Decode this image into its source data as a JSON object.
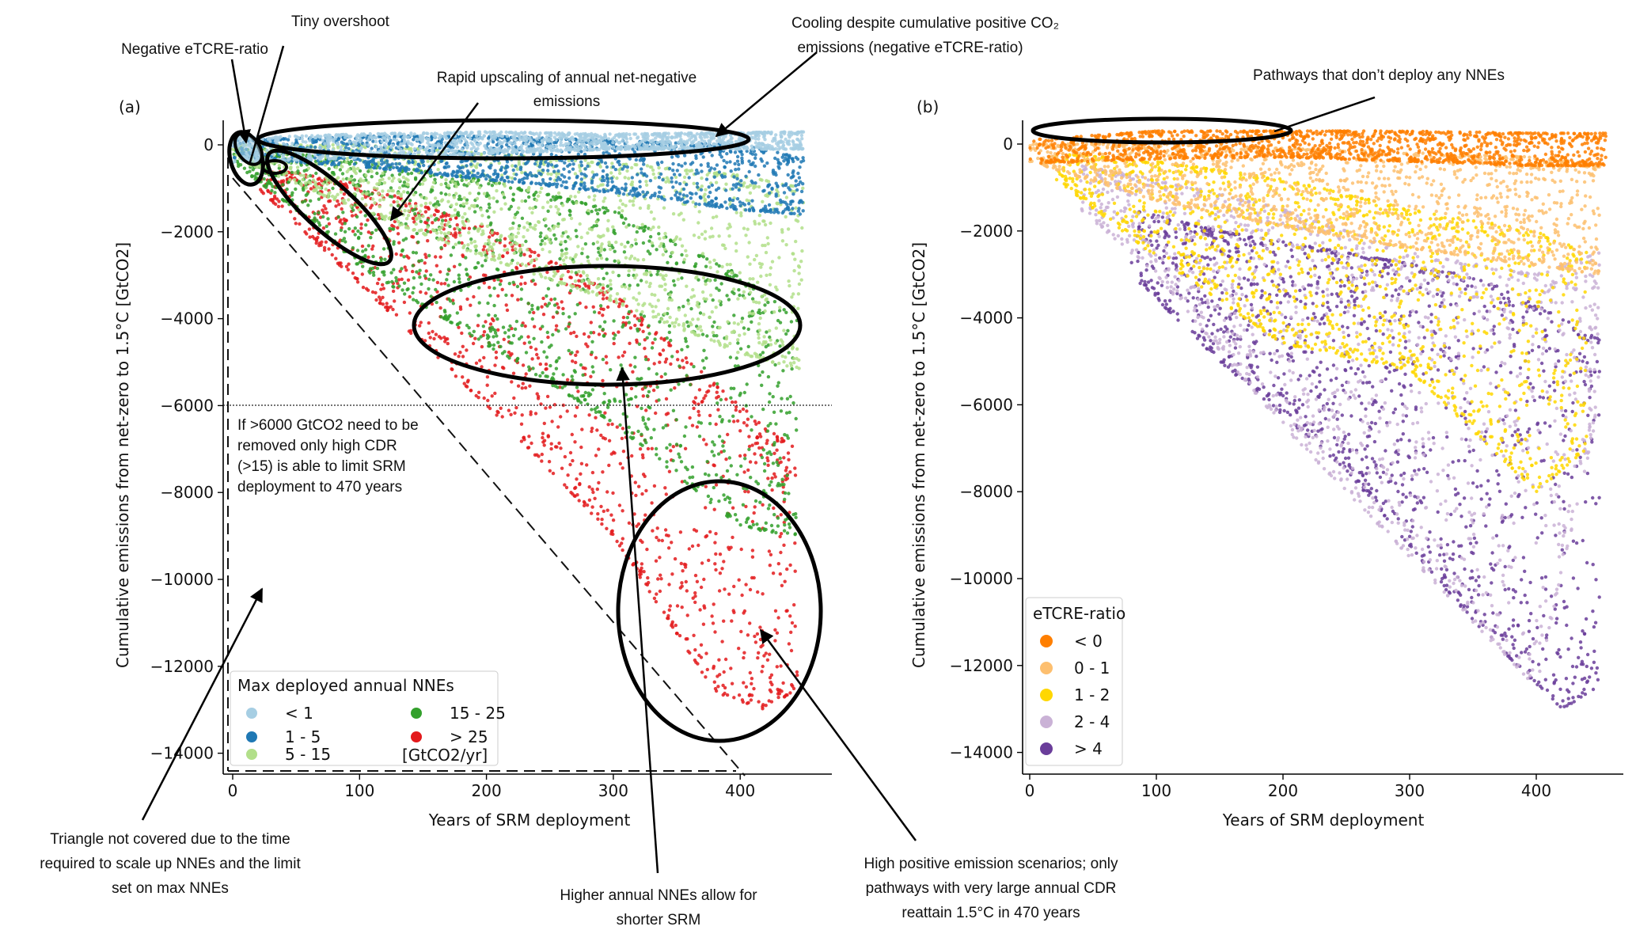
{
  "chart_data": [
    {
      "type": "scatter",
      "panel_label": "(a)",
      "xlabel": "Years of SRM deployment",
      "ylabel": "Cumulative emissions from net-zero to 1.5°C [GtCO2]",
      "xlim": [
        -5,
        470
      ],
      "ylim": [
        -14400,
        500
      ],
      "xticks": [
        "0",
        "100",
        "200",
        "300",
        "400"
      ],
      "yticks": [
        "0",
        "−2000",
        "−4000",
        "−6000",
        "−8000",
        "−10000",
        "−12000",
        "−14000"
      ],
      "legend": {
        "title": "Max deployed annual NNEs",
        "unit": "[GtCO2/yr]",
        "position": "lower-left"
      },
      "reference_lines": {
        "horizontal_dotted_y": -6000
      },
      "series": [
        {
          "name": "> 25",
          "color": "#e31a1c",
          "envelope_x_ymin_ymax": [
            [
              20,
              -1000,
              -500
            ],
            [
              100,
              -3200,
              -900
            ],
            [
              200,
              -6000,
              -1900
            ],
            [
              300,
              -9000,
              -3400
            ],
            [
              380,
              -12600,
              -5500
            ],
            [
              420,
              -13000,
              -6500
            ],
            [
              445,
              -12500,
              -7000
            ]
          ]
        },
        {
          "name": "15 - 25",
          "color": "#33a02c",
          "envelope_x_ymin_ymax": [
            [
              0,
              -400,
              0
            ],
            [
              50,
              -1500,
              -200
            ],
            [
              100,
              -2800,
              -400
            ],
            [
              200,
              -4600,
              -800
            ],
            [
              300,
              -6400,
              -1500
            ],
            [
              400,
              -8800,
              -3000
            ],
            [
              445,
              -9000,
              -4000
            ]
          ]
        },
        {
          "name": "5 - 15",
          "color": "#b2df8a",
          "envelope_x_ymin_ymax": [
            [
              0,
              -300,
              0
            ],
            [
              100,
              -1500,
              0
            ],
            [
              200,
              -2600,
              -200
            ],
            [
              300,
              -3600,
              -400
            ],
            [
              400,
              -4800,
              -700
            ],
            [
              450,
              -5200,
              -1000
            ]
          ]
        },
        {
          "name": "1 - 5",
          "color": "#1f78b4",
          "envelope_x_ymin_ymax": [
            [
              0,
              -300,
              100
            ],
            [
              100,
              -500,
              200
            ],
            [
              200,
              -800,
              200
            ],
            [
              300,
              -1100,
              100
            ],
            [
              400,
              -1500,
              0
            ],
            [
              450,
              -1600,
              -300
            ]
          ]
        },
        {
          "name": "< 1",
          "color": "#a6cee3",
          "envelope_x_ymin_ymax": [
            [
              0,
              -400,
              150
            ],
            [
              100,
              -300,
              250
            ],
            [
              200,
              -200,
              300
            ],
            [
              300,
              -100,
              250
            ],
            [
              450,
              -100,
              300
            ]
          ]
        }
      ],
      "legend_order": [
        "< 1",
        "1 - 5",
        "5 - 15",
        "15 - 25",
        "> 25"
      ]
    },
    {
      "type": "scatter",
      "panel_label": "(b)",
      "xlabel": "Years of SRM deployment",
      "ylabel": "Cumulative emissions from net-zero to 1.5°C [GtCO2]",
      "xlim": [
        -5,
        470
      ],
      "ylim": [
        -14400,
        500
      ],
      "xticks": [
        "0",
        "100",
        "200",
        "300",
        "400"
      ],
      "yticks": [
        "0",
        "−2000",
        "−4000",
        "−6000",
        "−8000",
        "−10000",
        "−12000",
        "−14000"
      ],
      "legend": {
        "title": "eTCRE-ratio",
        "position": "lower-left"
      },
      "series": [
        {
          "name": "> 4",
          "color": "#6a3d9a",
          "envelope_x_ymin_ymax": [
            [
              80,
              -3000,
              -1500
            ],
            [
              150,
              -5000,
              -2000
            ],
            [
              250,
              -7500,
              -2500
            ],
            [
              350,
              -11000,
              -3000
            ],
            [
              420,
              -13000,
              -4000
            ],
            [
              450,
              -12500,
              -4500
            ]
          ]
        },
        {
          "name": "2 - 4",
          "color": "#cab2d6",
          "envelope_x_ymin_ymax": [
            [
              40,
              -1500,
              -500
            ],
            [
              100,
              -3000,
              -800
            ],
            [
              200,
              -6500,
              -1500
            ],
            [
              300,
              -9500,
              -2500
            ],
            [
              400,
              -12500,
              -3000
            ],
            [
              450,
              -6000,
              -2500
            ]
          ]
        },
        {
          "name": "1 - 2",
          "color": "#ffd700",
          "envelope_x_ymin_ymax": [
            [
              20,
              -800,
              -200
            ],
            [
              100,
              -2600,
              -400
            ],
            [
              200,
              -4600,
              -800
            ],
            [
              300,
              -5200,
              -1500
            ],
            [
              400,
              -8000,
              -2000
            ],
            [
              440,
              -7000,
              -2500
            ]
          ]
        },
        {
          "name": "0 - 1",
          "color": "#fdbf6f",
          "envelope_x_ymin_ymax": [
            [
              0,
              -400,
              0
            ],
            [
              100,
              -1300,
              0
            ],
            [
              200,
              -1900,
              -100
            ],
            [
              300,
              -2400,
              -200
            ],
            [
              400,
              -2800,
              -300
            ],
            [
              450,
              -3000,
              -500
            ]
          ]
        },
        {
          "name": "< 0",
          "color": "#ff7f00",
          "envelope_x_ymin_ymax": [
            [
              0,
              -450,
              100
            ],
            [
              100,
              -350,
              300
            ],
            [
              200,
              -300,
              300
            ],
            [
              300,
              -400,
              300
            ],
            [
              400,
              -500,
              250
            ],
            [
              455,
              -500,
              250
            ]
          ]
        }
      ],
      "legend_order": [
        "< 0",
        "0 - 1",
        "1 - 2",
        "2 - 4",
        "> 4"
      ]
    }
  ],
  "annotations": {
    "tiny_overshoot": "Tiny overshoot",
    "negative_etcre": "Negative eTCRE-ratio",
    "rapid_upscaling": [
      "Rapid upscaling of annual net-negative",
      "emissions"
    ],
    "cooling": [
      "Cooling despite cumulative positive CO₂",
      "emissions (negative eTCRE-ratio)"
    ],
    "no_nnes": "Pathways that don’t deploy any NNEs",
    "threshold_note": [
      "If >6000 GtCO2 need to be",
      "removed only high CDR",
      "(>15) is able to limit SRM",
      "deployment to 470 years"
    ],
    "triangle": [
      "Triangle not covered due to the time",
      "required to scale up NNEs and the limit",
      "set on max NNEs"
    ],
    "higher_nnes": [
      "Higher annual NNEs allow for",
      "shorter SRM"
    ],
    "high_positive": [
      "High positive emission scenarios; only",
      "pathways with very large annual CDR",
      "reattain 1.5°C in 470 years"
    ]
  }
}
